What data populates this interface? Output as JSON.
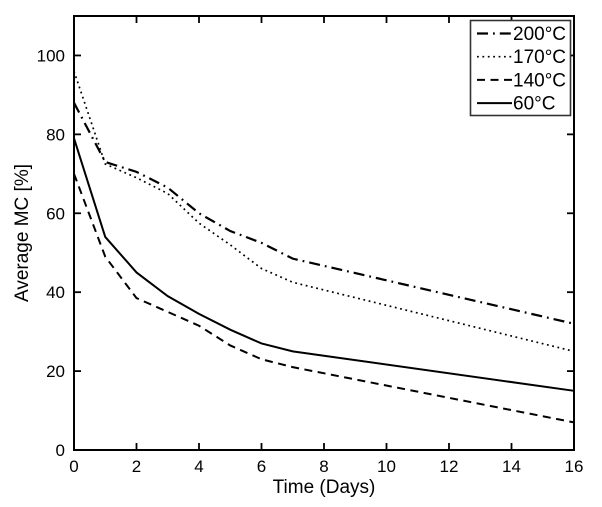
{
  "chart_data": {
    "type": "line",
    "title": "",
    "xlabel": "Time (Days)",
    "ylabel": "Average MC [%]",
    "xlim": [
      0,
      16
    ],
    "ylim": [
      0,
      110
    ],
    "x_ticks": [
      0,
      2,
      4,
      6,
      8,
      10,
      12,
      14,
      16
    ],
    "y_ticks": [
      0,
      20,
      40,
      60,
      80,
      100
    ],
    "grid": false,
    "legend_position": "top-right",
    "x": [
      0,
      1,
      2,
      3,
      4,
      5,
      6,
      7,
      16
    ],
    "series": [
      {
        "name": "200°C",
        "style": "dash-dot",
        "values": [
          88,
          73,
          70.5,
          66.5,
          60,
          55.5,
          52.5,
          48.5,
          32
        ]
      },
      {
        "name": "170°C",
        "style": "dotted",
        "values": [
          96,
          72.5,
          69,
          65,
          57.5,
          52,
          46,
          42.5,
          25
        ]
      },
      {
        "name": "140°C",
        "style": "dashed",
        "values": [
          70,
          49,
          38.5,
          35,
          31.5,
          26.5,
          23,
          21,
          7
        ]
      },
      {
        "name": "60°C",
        "style": "solid",
        "values": [
          79,
          54,
          45,
          39,
          34.5,
          30.5,
          27,
          25,
          15
        ]
      }
    ],
    "colors": {
      "line": "#000000",
      "background": "#ffffff",
      "legend_border": "#333333"
    }
  }
}
